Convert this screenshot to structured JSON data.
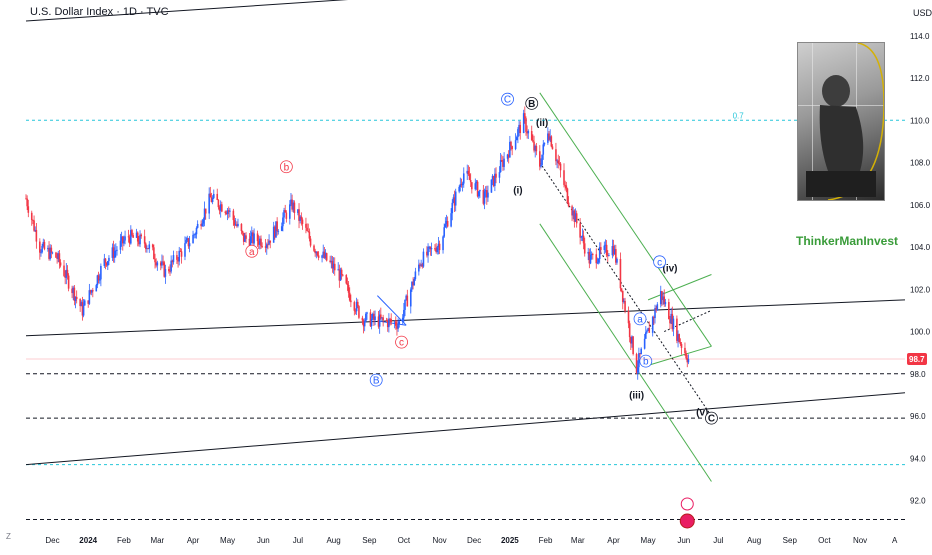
{
  "header": {
    "symbol_title": "U.S. Dollar Index · 1D · TVC",
    "currency": "USD",
    "zoom_label": "Z"
  },
  "brand_label": "ThinkerManInvest",
  "colors": {
    "candle_up": "#2962ff",
    "candle_down": "#f23645",
    "trendline": "#131722",
    "channel": "#4caf50",
    "fib_line": "#26c6da",
    "wave_red": "#f23645",
    "wave_blue": "#2962ff",
    "wave_black": "#131722",
    "last_price_bg": "#f23645"
  },
  "chart_data": {
    "type": "candlestick",
    "title": "U.S. Dollar Index · 1D · TVC",
    "ylabel": "USD",
    "ylim": [
      90.7,
      115.6
    ],
    "x_range": [
      "2023-11-08",
      "2025-12-10"
    ],
    "y_ticks": [
      "114.0",
      "112.0",
      "110.0",
      "108.0",
      "106.0",
      "104.0",
      "102.0",
      "100.0",
      "98.0",
      "96.0",
      "94.0",
      "92.0"
    ],
    "x_ticks": [
      {
        "label": "Dec",
        "date": "2023-12-01"
      },
      {
        "label": "2024",
        "date": "2024-01-01"
      },
      {
        "label": "Feb",
        "date": "2024-02-01"
      },
      {
        "label": "Mar",
        "date": "2024-03-01"
      },
      {
        "label": "Apr",
        "date": "2024-04-01"
      },
      {
        "label": "May",
        "date": "2024-05-01"
      },
      {
        "label": "Jun",
        "date": "2024-06-01"
      },
      {
        "label": "Jul",
        "date": "2024-07-01"
      },
      {
        "label": "Aug",
        "date": "2024-08-01"
      },
      {
        "label": "Sep",
        "date": "2024-09-01"
      },
      {
        "label": "Oct",
        "date": "2024-10-01"
      },
      {
        "label": "Nov",
        "date": "2024-11-01"
      },
      {
        "label": "Dec",
        "date": "2024-12-01"
      },
      {
        "label": "2025",
        "date": "2025-01-01"
      },
      {
        "label": "Feb",
        "date": "2025-02-01"
      },
      {
        "label": "Mar",
        "date": "2025-03-01"
      },
      {
        "label": "Apr",
        "date": "2025-04-01"
      },
      {
        "label": "May",
        "date": "2025-05-01"
      },
      {
        "label": "Jun",
        "date": "2025-06-01"
      },
      {
        "label": "Jul",
        "date": "2025-07-01"
      },
      {
        "label": "Aug",
        "date": "2025-08-01"
      },
      {
        "label": "Sep",
        "date": "2025-09-01"
      },
      {
        "label": "Oct",
        "date": "2025-10-01"
      },
      {
        "label": "Nov",
        "date": "2025-11-01"
      },
      {
        "label": "A",
        "date": "2025-12-01"
      }
    ],
    "last_price": 98.7,
    "price_path": [
      [
        "2023-11-08",
        106.3
      ],
      [
        "2023-11-20",
        104.0
      ],
      [
        "2023-12-05",
        103.5
      ],
      [
        "2023-12-27",
        101.0
      ],
      [
        "2024-01-15",
        103.3
      ],
      [
        "2024-02-05",
        104.5
      ],
      [
        "2024-02-20",
        104.2
      ],
      [
        "2024-03-08",
        102.8
      ],
      [
        "2024-04-01",
        104.5
      ],
      [
        "2024-04-16",
        106.3
      ],
      [
        "2024-05-01",
        105.8
      ],
      [
        "2024-05-15",
        104.4
      ],
      [
        "2024-06-05",
        104.3
      ],
      [
        "2024-06-26",
        106.0
      ],
      [
        "2024-07-15",
        104.0
      ],
      [
        "2024-08-05",
        102.8
      ],
      [
        "2024-08-26",
        100.6
      ],
      [
        "2024-09-27",
        100.4
      ],
      [
        "2024-10-15",
        103.3
      ],
      [
        "2024-11-01",
        104.2
      ],
      [
        "2024-11-22",
        107.5
      ],
      [
        "2024-12-10",
        106.3
      ],
      [
        "2025-01-13",
        110.0
      ],
      [
        "2025-01-27",
        107.9
      ],
      [
        "2025-02-03",
        109.6
      ],
      [
        "2025-02-20",
        106.4
      ],
      [
        "2025-03-11",
        103.4
      ],
      [
        "2025-04-01",
        104.0
      ],
      [
        "2025-04-21",
        98.3
      ],
      [
        "2025-05-12",
        101.8
      ],
      [
        "2025-05-29",
        99.5
      ],
      [
        "2025-06-05",
        98.7
      ]
    ],
    "horizontal_levels": [
      {
        "value": 110.0,
        "style": "dashed",
        "color": "#26c6da",
        "label": "0.7"
      },
      {
        "value": 93.7,
        "style": "dashed",
        "color": "#26c6da"
      },
      {
        "value": 98.0,
        "style": "dashed",
        "color": "#131722"
      },
      {
        "value": 95.9,
        "style": "dashed",
        "color": "#131722"
      },
      {
        "value": 91.1,
        "style": "dashed",
        "color": "#131722"
      }
    ],
    "trendlines": [
      {
        "from": [
          "2023-11-08",
          114.7
        ],
        "to": [
          "2024-10-30",
          116.0
        ],
        "color": "#131722"
      },
      {
        "from": [
          "2023-11-08",
          99.8
        ],
        "to": [
          "2025-12-10",
          101.5
        ],
        "color": "#131722"
      },
      {
        "from": [
          "2023-11-08",
          93.7
        ],
        "to": [
          "2025-12-10",
          97.1
        ],
        "color": "#131722"
      },
      {
        "from": [
          "2025-01-27",
          111.3
        ],
        "to": [
          "2025-06-25",
          99.3
        ],
        "color": "#4caf50"
      },
      {
        "from": [
          "2025-01-27",
          105.1
        ],
        "to": [
          "2025-06-25",
          92.9
        ],
        "color": "#4caf50"
      },
      {
        "from": [
          "2025-05-01",
          101.5
        ],
        "to": [
          "2025-06-25",
          102.7
        ],
        "color": "#4caf50"
      },
      {
        "from": [
          "2025-05-01",
          98.4
        ],
        "to": [
          "2025-06-25",
          99.3
        ],
        "color": "#4caf50"
      },
      {
        "from": [
          "2025-05-15",
          100.0
        ],
        "to": [
          "2025-06-25",
          101.0
        ],
        "color": "#131722",
        "style": "dotted"
      },
      {
        "from": [
          "2025-01-27",
          108.0
        ],
        "to": [
          "2025-06-25",
          96.0
        ],
        "color": "#131722",
        "style": "dotted"
      },
      {
        "from": [
          "2024-09-08",
          101.7
        ],
        "to": [
          "2024-10-03",
          100.3
        ],
        "color": "#2962ff"
      },
      {
        "from": [
          "2024-09-08",
          100.5
        ],
        "to": [
          "2024-10-03",
          100.3
        ],
        "color": "#2962ff"
      }
    ],
    "wave_labels": [
      {
        "text": "b",
        "date": "2024-06-21",
        "value": 107.8,
        "color": "#f23645",
        "circled": true
      },
      {
        "text": "a",
        "date": "2024-05-22",
        "value": 103.8,
        "color": "#f23645",
        "circled": true
      },
      {
        "text": "c",
        "date": "2024-09-29",
        "value": 99.5,
        "color": "#f23645",
        "circled": true
      },
      {
        "text": "B",
        "date": "2024-09-07",
        "value": 97.7,
        "color": "#2962ff",
        "circled": true
      },
      {
        "text": "C",
        "date": "2024-12-30",
        "value": 111.0,
        "color": "#2962ff",
        "circled": true
      },
      {
        "text": "B",
        "date": "2025-01-20",
        "value": 110.8,
        "color": "#131722",
        "circled": true
      },
      {
        "text": "(ii)",
        "date": "2025-01-29",
        "value": 109.9,
        "color": "#131722",
        "circled": false
      },
      {
        "text": "(i)",
        "date": "2025-01-08",
        "value": 106.7,
        "color": "#131722",
        "circled": false
      },
      {
        "text": "(iii)",
        "date": "2025-04-21",
        "value": 97.0,
        "color": "#131722",
        "circled": false
      },
      {
        "text": "(iv)",
        "date": "2025-05-20",
        "value": 103.0,
        "color": "#131722",
        "circled": false
      },
      {
        "text": "c",
        "date": "2025-05-11",
        "value": 103.3,
        "color": "#2962ff",
        "circled": true
      },
      {
        "text": "a",
        "date": "2025-04-24",
        "value": 100.6,
        "color": "#2962ff",
        "circled": true
      },
      {
        "text": "b",
        "date": "2025-04-29",
        "value": 98.6,
        "color": "#2962ff",
        "circled": true
      },
      {
        "text": "(v)",
        "date": "2025-06-17",
        "value": 96.2,
        "color": "#131722",
        "circled": false
      },
      {
        "text": "C",
        "date": "2025-06-25",
        "value": 95.9,
        "color": "#131722",
        "circled": true
      }
    ],
    "grid": false,
    "legend": "none"
  }
}
